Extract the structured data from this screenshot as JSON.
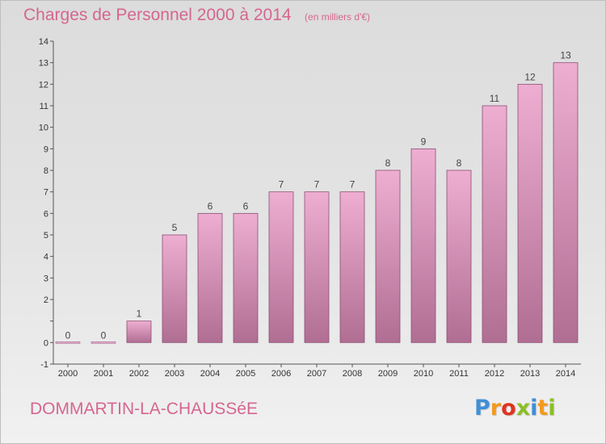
{
  "header": {
    "title": "Charges de Personnel 2000 à 2014",
    "subtitle": "(en milliers d'€)"
  },
  "footer": {
    "commune": "DOMMARTIN-LA-CHAUSSéE",
    "logo_text": "Proxiti",
    "logo_letters": [
      {
        "char": "P",
        "color": "#3f8fd8"
      },
      {
        "char": "r",
        "color": "#f39a1e"
      },
      {
        "char": "o",
        "color": "#e0331e"
      },
      {
        "char": "x",
        "color": "#8cbf26"
      },
      {
        "char": "i",
        "color": "#3f8fd8"
      },
      {
        "char": "t",
        "color": "#f39a1e"
      },
      {
        "char": "i",
        "color": "#8cbf26"
      }
    ]
  },
  "chart_data": {
    "type": "bar",
    "title": "Charges de Personnel 2000 à 2014",
    "subtitle": "(en milliers d'€)",
    "categories": [
      "2000",
      "2001",
      "2002",
      "2003",
      "2004",
      "2005",
      "2006",
      "2007",
      "2008",
      "2009",
      "2010",
      "2011",
      "2012",
      "2013",
      "2014"
    ],
    "values": [
      0,
      0,
      1,
      5,
      6,
      6,
      7,
      7,
      7,
      8,
      9,
      8,
      11,
      12,
      13
    ],
    "ylim": [
      -1,
      14
    ],
    "yticks": [
      -1,
      0,
      1,
      2,
      3,
      4,
      5,
      6,
      7,
      8,
      9,
      10,
      11,
      12,
      13,
      14
    ],
    "ytick_labels": [
      "-1",
      "0",
      "",
      "2",
      "3",
      "4",
      "5",
      "6",
      "7",
      "8",
      "9",
      "10",
      "11",
      "12",
      "13",
      "14"
    ],
    "grid": false,
    "colors": {
      "bar_top": "#eeaed2",
      "bar_bottom": "#b06e93",
      "bar_edge": "#8c4f72",
      "text_accent": "#d5668f"
    }
  }
}
